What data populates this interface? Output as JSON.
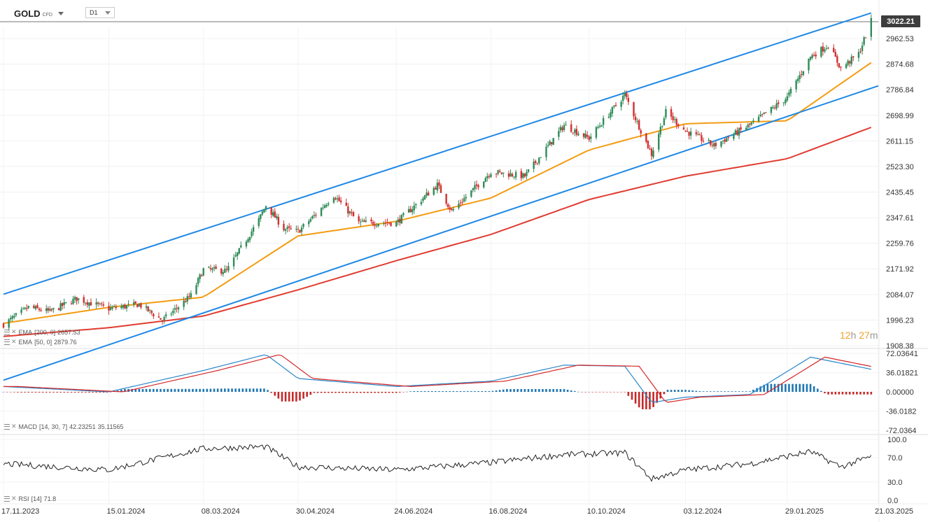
{
  "header": {
    "symbol": "GOLD",
    "instrument_type": "CFD",
    "timeframe": "D1"
  },
  "last_price": "3022.21",
  "countdown": {
    "hours": "12",
    "h_unit": "h",
    "minutes": "27",
    "m_unit": "m"
  },
  "indicators": {
    "ema200": {
      "name": "EMA",
      "params": "[200, 0]",
      "value": "2657.53",
      "color": "#e03c31"
    },
    "ema50": {
      "name": "EMA",
      "params": "[50, 0]",
      "value": "2879.76",
      "color": "#f39c12"
    },
    "macd": {
      "name": "MACD",
      "params": "[14, 30, 7]",
      "value1": "42.23251",
      "value2": "35.11565"
    },
    "rsi": {
      "name": "RSI",
      "params": "[14]",
      "value": "71.8"
    }
  },
  "colors": {
    "bull": "#2e8b57",
    "bear": "#d32f2f",
    "channel": "#1e88e5",
    "macd_pos": "#1f77b4",
    "macd_neg": "#c62828",
    "signal": "#d62728"
  },
  "chart_data": {
    "type": "line",
    "price_axis": {
      "ticks": [
        "2962.53",
        "2874.68",
        "2786.84",
        "2698.99",
        "2611.15",
        "2523.30",
        "2435.45",
        "2347.61",
        "2259.76",
        "2171.92",
        "2084.07",
        "1996.23",
        "1908.38"
      ],
      "range": [
        1908.38,
        3050
      ]
    },
    "macd_axis": {
      "ticks": [
        "72.03641",
        "36.01821",
        "0.00000",
        "-36.0182",
        "-72.0364"
      ],
      "range": [
        -72.0364,
        72.0364
      ]
    },
    "rsi_axis": {
      "ticks": [
        "100.0",
        "70.0",
        "30.0",
        "0.0"
      ],
      "range": [
        0,
        100
      ]
    },
    "date_labels": [
      "17.11.2023",
      "15.01.2024",
      "08.03.2024",
      "30.04.2024",
      "24.06.2024",
      "16.08.2024",
      "10.10.2024",
      "03.12.2024",
      "29.01.2025",
      "21.03.2025"
    ],
    "price_series": [
      [
        "17.11.2023",
        1981
      ],
      [
        "01.12.2023",
        2040
      ],
      [
        "13.12.2023",
        2025
      ],
      [
        "28.12.2023",
        2070
      ],
      [
        "15.01.2024",
        2035
      ],
      [
        "01.02.2024",
        2050
      ],
      [
        "14.02.2024",
        1995
      ],
      [
        "01.03.2024",
        2080
      ],
      [
        "08.03.2024",
        2170
      ],
      [
        "21.03.2024",
        2165
      ],
      [
        "08.04.2024",
        2340
      ],
      [
        "12.04.2024",
        2390
      ],
      [
        "22.04.2024",
        2310
      ],
      [
        "30.04.2024",
        2300
      ],
      [
        "10.05.2024",
        2360
      ],
      [
        "20.05.2024",
        2425
      ],
      [
        "03.06.2024",
        2330
      ],
      [
        "24.06.2024",
        2330
      ],
      [
        "17.07.2024",
        2460
      ],
      [
        "25.07.2024",
        2370
      ],
      [
        "16.08.2024",
        2505
      ],
      [
        "04.09.2024",
        2490
      ],
      [
        "26.09.2024",
        2665
      ],
      [
        "10.10.2024",
        2620
      ],
      [
        "30.10.2024",
        2770
      ],
      [
        "14.11.2024",
        2565
      ],
      [
        "22.11.2024",
        2710
      ],
      [
        "03.12.2024",
        2645
      ],
      [
        "19.12.2024",
        2595
      ],
      [
        "08.01.2025",
        2665
      ],
      [
        "29.01.2025",
        2760
      ],
      [
        "11.02.2025",
        2900
      ],
      [
        "21.02.2025",
        2940
      ],
      [
        "28.02.2025",
        2860
      ],
      [
        "10.03.2025",
        2910
      ],
      [
        "17.03.2025",
        3022
      ]
    ],
    "ema50_series": [
      [
        "17.11.2023",
        1985
      ],
      [
        "15.01.2024",
        2040
      ],
      [
        "08.03.2024",
        2075
      ],
      [
        "30.04.2024",
        2285
      ],
      [
        "24.06.2024",
        2335
      ],
      [
        "16.08.2024",
        2415
      ],
      [
        "10.10.2024",
        2580
      ],
      [
        "03.12.2024",
        2670
      ],
      [
        "29.01.2025",
        2680
      ],
      [
        "17.03.2025",
        2879.76
      ]
    ],
    "ema200_series": [
      [
        "17.11.2023",
        1940
      ],
      [
        "15.01.2024",
        1970
      ],
      [
        "08.03.2024",
        2010
      ],
      [
        "30.04.2024",
        2100
      ],
      [
        "24.06.2024",
        2200
      ],
      [
        "16.08.2024",
        2290
      ],
      [
        "10.10.2024",
        2410
      ],
      [
        "03.12.2024",
        2490
      ],
      [
        "29.01.2025",
        2550
      ],
      [
        "17.03.2025",
        2657.53
      ]
    ],
    "channel_upper": [
      [
        "17.11.2023",
        2085
      ],
      [
        "17.03.2025",
        3050
      ]
    ],
    "channel_lower": [
      [
        "17.11.2023",
        1790
      ],
      [
        "21.03.2025",
        2800
      ]
    ],
    "macd_series": [
      [
        "17.11.2023",
        10
      ],
      [
        "15.01.2024",
        0
      ],
      [
        "08.03.2024",
        40
      ],
      [
        "12.04.2024",
        70
      ],
      [
        "30.04.2024",
        25
      ],
      [
        "24.06.2024",
        10
      ],
      [
        "16.08.2024",
        20
      ],
      [
        "26.09.2024",
        50
      ],
      [
        "30.10.2024",
        48
      ],
      [
        "14.11.2024",
        -20
      ],
      [
        "03.12.2024",
        -10
      ],
      [
        "08.01.2025",
        -5
      ],
      [
        "11.02.2025",
        65
      ],
      [
        "17.03.2025",
        42.23
      ]
    ],
    "rsi_series": [
      [
        "17.11.2023",
        60
      ],
      [
        "15.01.2024",
        50
      ],
      [
        "08.03.2024",
        85
      ],
      [
        "12.04.2024",
        88
      ],
      [
        "30.04.2024",
        55
      ],
      [
        "24.06.2024",
        50
      ],
      [
        "16.08.2024",
        62
      ],
      [
        "26.09.2024",
        75
      ],
      [
        "30.10.2024",
        78
      ],
      [
        "14.11.2024",
        35
      ],
      [
        "03.12.2024",
        50
      ],
      [
        "08.01.2025",
        60
      ],
      [
        "11.02.2025",
        80
      ],
      [
        "28.02.2025",
        55
      ],
      [
        "17.03.2025",
        71.8
      ]
    ]
  }
}
